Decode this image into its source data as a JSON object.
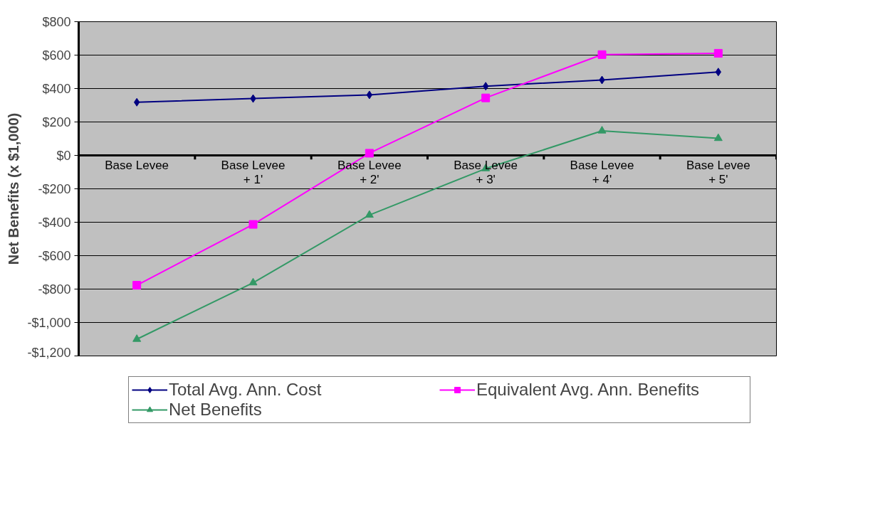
{
  "chart_data": {
    "type": "line",
    "ylabel": "Net Benefits (x $1,000)",
    "categories": [
      "Base Levee",
      "Base Levee\n+ 1'",
      "Base Levee\n+ 2'",
      "Base Levee\n+ 3'",
      "Base Levee\n+ 4'",
      "Base Levee\n+ 5'"
    ],
    "series": [
      {
        "name": "Total Avg. Ann. Cost",
        "color": "#000080",
        "marker": "diamond",
        "values": [
          318,
          340,
          362,
          414,
          451,
          499
        ]
      },
      {
        "name": "Equivalent Avg. Ann. Benefits",
        "color": "#ff00ff",
        "marker": "square",
        "values": [
          -777,
          -413,
          13,
          344,
          603,
          611
        ]
      },
      {
        "name": "Net Benefits",
        "color": "#339966",
        "marker": "triangle",
        "values": [
          -1100,
          -762,
          -357,
          -79,
          147,
          102
        ]
      }
    ],
    "ylim": [
      -1200,
      800
    ],
    "yticks": [
      {
        "value": -1200,
        "label": "-$1,200"
      },
      {
        "value": -1000,
        "label": "-$1,000"
      },
      {
        "value": -800,
        "label": "-$800"
      },
      {
        "value": -600,
        "label": "-$600"
      },
      {
        "value": -400,
        "label": "-$400"
      },
      {
        "value": -200,
        "label": "-$200"
      },
      {
        "value": 0,
        "label": "$0"
      },
      {
        "value": 200,
        "label": "$200"
      },
      {
        "value": 400,
        "label": "$400"
      },
      {
        "value": 600,
        "label": "$600"
      },
      {
        "value": 800,
        "label": "$800"
      }
    ],
    "grid": "y",
    "legend": "bottom"
  }
}
